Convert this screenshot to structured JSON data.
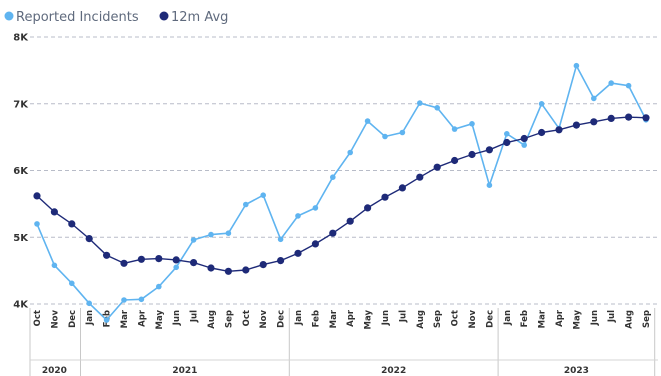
{
  "chart_data": {
    "type": "line",
    "legend_position": "top-left",
    "grid": true,
    "ylim": [
      3500,
      8000
    ],
    "yticks": [
      {
        "value": 4000,
        "label": "4K"
      },
      {
        "value": 5000,
        "label": "5K"
      },
      {
        "value": 6000,
        "label": "6K"
      },
      {
        "value": 7000,
        "label": "7K"
      },
      {
        "value": 8000,
        "label": "8K"
      }
    ],
    "categories": [
      "Oct",
      "Nov",
      "Dec",
      "Jan",
      "Feb",
      "Mar",
      "Apr",
      "May",
      "Jun",
      "Jul",
      "Aug",
      "Sep",
      "Oct",
      "Nov",
      "Dec",
      "Jan",
      "Feb",
      "Mar",
      "Apr",
      "May",
      "Jun",
      "Jul",
      "Aug",
      "Sep",
      "Oct",
      "Nov",
      "Dec",
      "Jan",
      "Feb",
      "Mar",
      "Apr",
      "May",
      "Jun",
      "Jul",
      "Aug",
      "Sep"
    ],
    "years": [
      {
        "label": "2020",
        "start": 0,
        "end": 2
      },
      {
        "label": "2021",
        "start": 3,
        "end": 14
      },
      {
        "label": "2022",
        "start": 15,
        "end": 26
      },
      {
        "label": "2023",
        "start": 27,
        "end": 35
      }
    ],
    "series": [
      {
        "name": "Reported Incidents",
        "color": "#5fb4f0",
        "values": [
          5200,
          4580,
          4310,
          4010,
          3760,
          4060,
          4070,
          4260,
          4550,
          4960,
          5040,
          5060,
          5490,
          5630,
          4970,
          5320,
          5440,
          5900,
          6270,
          6740,
          6510,
          6570,
          7010,
          6940,
          6620,
          6700,
          5780,
          6550,
          6380,
          7000,
          6630,
          7570,
          7080,
          7310,
          7270,
          6760
        ]
      },
      {
        "name": "12m Avg",
        "color": "#1e2a78",
        "values": [
          5620,
          5380,
          5200,
          4980,
          4730,
          4610,
          4670,
          4680,
          4660,
          4620,
          4540,
          4490,
          4510,
          4590,
          4650,
          4760,
          4900,
          5060,
          5240,
          5440,
          5600,
          5740,
          5900,
          6050,
          6150,
          6240,
          6310,
          6420,
          6480,
          6570,
          6610,
          6680,
          6730,
          6780,
          6800,
          6790
        ]
      }
    ]
  }
}
